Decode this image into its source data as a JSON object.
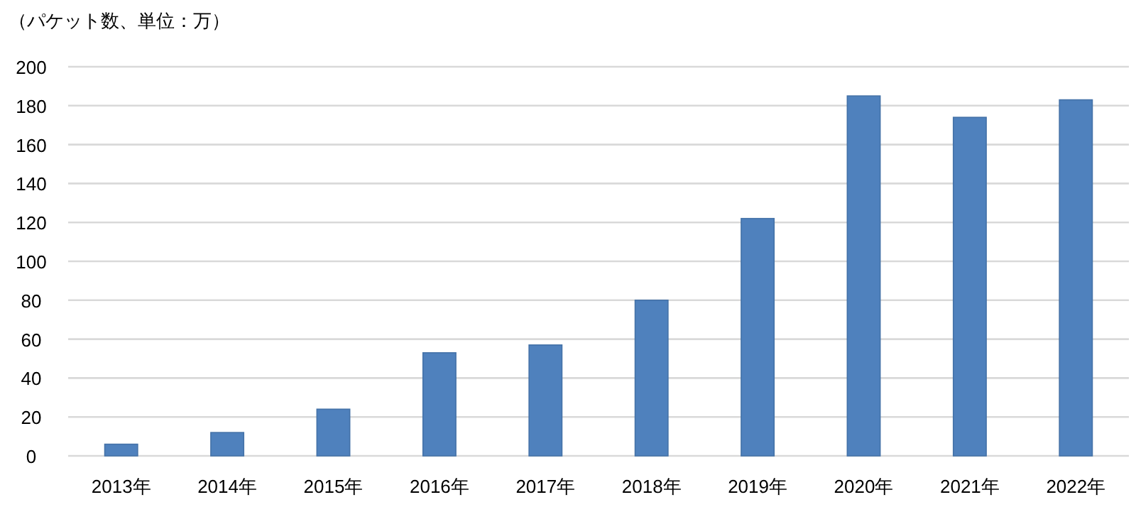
{
  "chart_data": {
    "type": "bar",
    "ylabel": "（パケット数、単位：万）",
    "categories": [
      "2013年",
      "2014年",
      "2015年",
      "2016年",
      "2017年",
      "2018年",
      "2019年",
      "2020年",
      "2021年",
      "2022年"
    ],
    "values": [
      6,
      12,
      24,
      53,
      57,
      80,
      122,
      185,
      174,
      183
    ],
    "color": "#4f81bd",
    "ylim": [
      0,
      200
    ],
    "yticks": [
      0,
      20,
      40,
      60,
      80,
      100,
      120,
      140,
      160,
      180,
      200
    ],
    "grid": "y"
  }
}
